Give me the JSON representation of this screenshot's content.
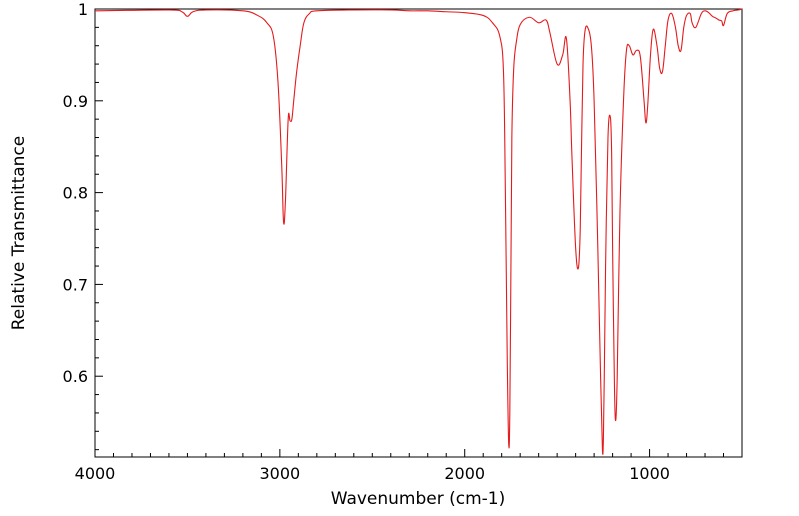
{
  "chart_data": {
    "type": "line",
    "title": "",
    "xlabel": "Wavenumber (cm-1)",
    "ylabel": "Relative Transmittance",
    "xlim": [
      4000,
      500
    ],
    "ylim": [
      0.512,
      1.0
    ],
    "x_ticks": [
      4000,
      3000,
      2000,
      1000
    ],
    "x_tick_labels": [
      "4000",
      "3000",
      "2000",
      "1000"
    ],
    "y_ticks": [
      0.6,
      0.7,
      0.8,
      0.9,
      1.0
    ],
    "y_tick_labels": [
      "0.6",
      "0.7",
      "0.8",
      "0.9",
      "1"
    ],
    "grid": false,
    "line_color": "#e41a1c",
    "series": [
      {
        "x": [
          4000,
          3600,
          3530,
          3500,
          3470,
          3400,
          3200,
          3120,
          3070,
          3035,
          3010,
          2990,
          2980,
          2970,
          2955,
          2945,
          2935,
          2925,
          2910,
          2890,
          2870,
          2840,
          2800,
          2600,
          2400,
          2300,
          2200,
          2100,
          2000,
          1900,
          1850,
          1810,
          1790,
          1780,
          1770,
          1762,
          1756,
          1750,
          1745,
          1735,
          1720,
          1700,
          1650,
          1600,
          1560,
          1540,
          1500,
          1470,
          1450,
          1430,
          1420,
          1400,
          1385,
          1375,
          1368,
          1360,
          1350,
          1335,
          1315,
          1300,
          1280,
          1265,
          1255,
          1250,
          1245,
          1238,
          1225,
          1212,
          1205,
          1200,
          1190,
          1183,
          1175,
          1160,
          1140,
          1125,
          1110,
          1090,
          1070,
          1050,
          1030,
          1020,
          1010,
          995,
          980,
          960,
          945,
          930,
          915,
          900,
          880,
          860,
          845,
          830,
          815,
          800,
          780,
          770,
          750,
          720,
          700,
          680,
          660,
          640,
          625,
          610,
          600,
          580,
          550,
          520,
          500
        ],
        "y": [
          0.998,
          0.999,
          0.997,
          0.992,
          0.997,
          0.999,
          0.998,
          0.993,
          0.985,
          0.97,
          0.92,
          0.83,
          0.768,
          0.79,
          0.88,
          0.878,
          0.88,
          0.9,
          0.93,
          0.96,
          0.985,
          0.995,
          0.998,
          0.999,
          0.999,
          0.998,
          0.998,
          0.997,
          0.996,
          0.993,
          0.985,
          0.97,
          0.93,
          0.8,
          0.62,
          0.526,
          0.56,
          0.72,
          0.86,
          0.935,
          0.965,
          0.983,
          0.991,
          0.985,
          0.988,
          0.975,
          0.94,
          0.95,
          0.968,
          0.9,
          0.84,
          0.74,
          0.718,
          0.76,
          0.85,
          0.94,
          0.975,
          0.98,
          0.96,
          0.9,
          0.74,
          0.6,
          0.52,
          0.53,
          0.6,
          0.72,
          0.86,
          0.882,
          0.84,
          0.74,
          0.59,
          0.552,
          0.6,
          0.78,
          0.905,
          0.955,
          0.96,
          0.95,
          0.955,
          0.948,
          0.9,
          0.876,
          0.895,
          0.95,
          0.978,
          0.96,
          0.935,
          0.932,
          0.96,
          0.988,
          0.995,
          0.98,
          0.96,
          0.955,
          0.98,
          0.993,
          0.995,
          0.985,
          0.98,
          0.995,
          0.998,
          0.996,
          0.992,
          0.99,
          0.988,
          0.987,
          0.982,
          0.995,
          0.998,
          0.999,
          1.0
        ]
      }
    ]
  }
}
